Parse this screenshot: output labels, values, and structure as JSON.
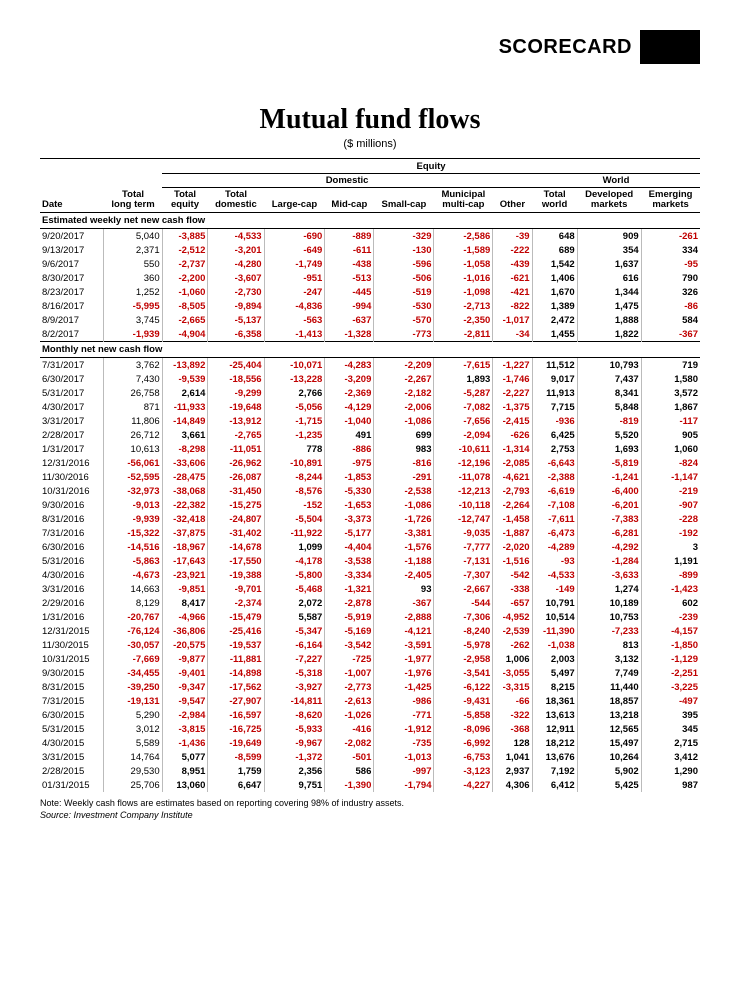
{
  "header": {
    "scorecard": "SCORECARD"
  },
  "title": "Mutual fund flows",
  "subtitle": "($ millions)",
  "group_labels": {
    "equity": "Equity",
    "domestic": "Domestic",
    "world": "World"
  },
  "columns": [
    "Date",
    "Total\nlong term",
    "Total\nequity",
    "Total\ndomestic",
    "Large-cap",
    "Mid-cap",
    "Small-cap",
    "Municipal\nmulti-cap",
    "Other",
    "Total\nworld",
    "Developed\nmarkets",
    "Emerging\nmarkets"
  ],
  "sections": [
    {
      "label": "Estimated weekly net new cash flow",
      "rows": [
        [
          "9/20/2017",
          "5,040",
          "-3,885",
          "-4,533",
          "-690",
          "-889",
          "-329",
          "-2,586",
          "-39",
          "648",
          "909",
          "-261"
        ],
        [
          "9/13/2017",
          "2,371",
          "-2,512",
          "-3,201",
          "-649",
          "-611",
          "-130",
          "-1,589",
          "-222",
          "689",
          "354",
          "334"
        ],
        [
          "9/6/2017",
          "550",
          "-2,737",
          "-4,280",
          "-1,749",
          "-438",
          "-596",
          "-1,058",
          "-439",
          "1,542",
          "1,637",
          "-95"
        ],
        [
          "8/30/2017",
          "360",
          "-2,200",
          "-3,607",
          "-951",
          "-513",
          "-506",
          "-1,016",
          "-621",
          "1,406",
          "616",
          "790"
        ],
        [
          "8/23/2017",
          "1,252",
          "-1,060",
          "-2,730",
          "-247",
          "-445",
          "-519",
          "-1,098",
          "-421",
          "1,670",
          "1,344",
          "326"
        ],
        [
          "8/16/2017",
          "-5,995",
          "-8,505",
          "-9,894",
          "-4,836",
          "-994",
          "-530",
          "-2,713",
          "-822",
          "1,389",
          "1,475",
          "-86"
        ],
        [
          "8/9/2017",
          "3,745",
          "-2,665",
          "-5,137",
          "-563",
          "-637",
          "-570",
          "-2,350",
          "-1,017",
          "2,472",
          "1,888",
          "584"
        ],
        [
          "8/2/2017",
          "-1,939",
          "-4,904",
          "-6,358",
          "-1,413",
          "-1,328",
          "-773",
          "-2,811",
          "-34",
          "1,455",
          "1,822",
          "-367"
        ]
      ]
    },
    {
      "label": "Monthly net new cash flow",
      "rows": [
        [
          "7/31/2017",
          "3,762",
          "-13,892",
          "-25,404",
          "-10,071",
          "-4,283",
          "-2,209",
          "-7,615",
          "-1,227",
          "11,512",
          "10,793",
          "719"
        ],
        [
          "6/30/2017",
          "7,430",
          "-9,539",
          "-18,556",
          "-13,228",
          "-3,209",
          "-2,267",
          "1,893",
          "-1,746",
          "9,017",
          "7,437",
          "1,580"
        ],
        [
          "5/31/2017",
          "26,758",
          "2,614",
          "-9,299",
          "2,766",
          "-2,369",
          "-2,182",
          "-5,287",
          "-2,227",
          "11,913",
          "8,341",
          "3,572"
        ],
        [
          "4/30/2017",
          "871",
          "-11,933",
          "-19,648",
          "-5,056",
          "-4,129",
          "-2,006",
          "-7,082",
          "-1,375",
          "7,715",
          "5,848",
          "1,867"
        ],
        [
          "3/31/2017",
          "11,806",
          "-14,849",
          "-13,912",
          "-1,715",
          "-1,040",
          "-1,086",
          "-7,656",
          "-2,415",
          "-936",
          "-819",
          "-117"
        ],
        [
          "2/28/2017",
          "26,712",
          "3,661",
          "-2,765",
          "-1,235",
          "491",
          "699",
          "-2,094",
          "-626",
          "6,425",
          "5,520",
          "905"
        ],
        [
          "1/31/2017",
          "10,613",
          "-8,298",
          "-11,051",
          "778",
          "-886",
          "983",
          "-10,611",
          "-1,314",
          "2,753",
          "1,693",
          "1,060"
        ],
        [
          "12/31/2016",
          "-56,061",
          "-33,606",
          "-26,962",
          "-10,891",
          "-975",
          "-816",
          "-12,196",
          "-2,085",
          "-6,643",
          "-5,819",
          "-824"
        ],
        [
          "11/30/2016",
          "-52,595",
          "-28,475",
          "-26,087",
          "-8,244",
          "-1,853",
          "-291",
          "-11,078",
          "-4,621",
          "-2,388",
          "-1,241",
          "-1,147"
        ],
        [
          "10/31/2016",
          "-32,973",
          "-38,068",
          "-31,450",
          "-8,576",
          "-5,330",
          "-2,538",
          "-12,213",
          "-2,793",
          "-6,619",
          "-6,400",
          "-219"
        ],
        [
          "9/30/2016",
          "-9,013",
          "-22,382",
          "-15,275",
          "-152",
          "-1,653",
          "-1,086",
          "-10,118",
          "-2,264",
          "-7,108",
          "-6,201",
          "-907"
        ],
        [
          "8/31/2016",
          "-9,939",
          "-32,418",
          "-24,807",
          "-5,504",
          "-3,373",
          "-1,726",
          "-12,747",
          "-1,458",
          "-7,611",
          "-7,383",
          "-228"
        ],
        [
          "7/31/2016",
          "-15,322",
          "-37,875",
          "-31,402",
          "-11,922",
          "-5,177",
          "-3,381",
          "-9,035",
          "-1,887",
          "-6,473",
          "-6,281",
          "-192"
        ],
        [
          "6/30/2016",
          "-14,516",
          "-18,967",
          "-14,678",
          "1,099",
          "-4,404",
          "-1,576",
          "-7,777",
          "-2,020",
          "-4,289",
          "-4,292",
          "3"
        ],
        [
          "5/31/2016",
          "-5,863",
          "-17,643",
          "-17,550",
          "-4,178",
          "-3,538",
          "-1,188",
          "-7,131",
          "-1,516",
          "-93",
          "-1,284",
          "1,191"
        ],
        [
          "4/30/2016",
          "-4,673",
          "-23,921",
          "-19,388",
          "-5,800",
          "-3,334",
          "-2,405",
          "-7,307",
          "-542",
          "-4,533",
          "-3,633",
          "-899"
        ],
        [
          "3/31/2016",
          "14,663",
          "-9,851",
          "-9,701",
          "-5,468",
          "-1,321",
          "93",
          "-2,667",
          "-338",
          "-149",
          "1,274",
          "-1,423"
        ],
        [
          "2/29/2016",
          "8,129",
          "8,417",
          "-2,374",
          "2,072",
          "-2,878",
          "-367",
          "-544",
          "-657",
          "10,791",
          "10,189",
          "602"
        ],
        [
          "1/31/2016",
          "-20,767",
          "-4,966",
          "-15,479",
          "5,587",
          "-5,919",
          "-2,888",
          "-7,306",
          "-4,952",
          "10,514",
          "10,753",
          "-239"
        ],
        [
          "12/31/2015",
          "-76,124",
          "-36,806",
          "-25,416",
          "-5,347",
          "-5,169",
          "-4,121",
          "-8,240",
          "-2,539",
          "-11,390",
          "-7,233",
          "-4,157"
        ],
        [
          "11/30/2015",
          "-30,057",
          "-20,575",
          "-19,537",
          "-6,164",
          "-3,542",
          "-3,591",
          "-5,978",
          "-262",
          "-1,038",
          "813",
          "-1,850"
        ],
        [
          "10/31/2015",
          "-7,669",
          "-9,877",
          "-11,881",
          "-7,227",
          "-725",
          "-1,977",
          "-2,958",
          "1,006",
          "2,003",
          "3,132",
          "-1,129"
        ],
        [
          "9/30/2015",
          "-34,455",
          "-9,401",
          "-14,898",
          "-5,318",
          "-1,007",
          "-1,976",
          "-3,541",
          "-3,055",
          "5,497",
          "7,749",
          "-2,251"
        ],
        [
          "8/31/2015",
          "-39,250",
          "-9,347",
          "-17,562",
          "-3,927",
          "-2,773",
          "-1,425",
          "-6,122",
          "-3,315",
          "8,215",
          "11,440",
          "-3,225"
        ],
        [
          "7/31/2015",
          "-19,131",
          "-9,547",
          "-27,907",
          "-14,811",
          "-2,613",
          "-986",
          "-9,431",
          "-66",
          "18,361",
          "18,857",
          "-497"
        ],
        [
          "6/30/2015",
          "5,290",
          "-2,984",
          "-16,597",
          "-8,620",
          "-1,026",
          "-771",
          "-5,858",
          "-322",
          "13,613",
          "13,218",
          "395"
        ],
        [
          "5/31/2015",
          "3,012",
          "-3,815",
          "-16,725",
          "-5,933",
          "-416",
          "-1,912",
          "-8,096",
          "-368",
          "12,911",
          "12,565",
          "345"
        ],
        [
          "4/30/2015",
          "5,589",
          "-1,436",
          "-19,649",
          "-9,967",
          "-2,082",
          "-735",
          "-6,992",
          "128",
          "18,212",
          "15,497",
          "2,715"
        ],
        [
          "3/31/2015",
          "14,764",
          "5,077",
          "-8,599",
          "-1,372",
          "-501",
          "-1,013",
          "-6,753",
          "1,041",
          "13,676",
          "10,264",
          "3,412"
        ],
        [
          "2/28/2015",
          "29,530",
          "8,951",
          "1,759",
          "2,356",
          "586",
          "-997",
          "-3,123",
          "2,937",
          "7,192",
          "5,902",
          "1,290"
        ],
        [
          "01/31/2015",
          "25,706",
          "13,060",
          "6,647",
          "9,751",
          "-1,390",
          "-1,794",
          "-4,227",
          "4,306",
          "6,412",
          "5,425",
          "987"
        ]
      ]
    }
  ],
  "note": "Note:  Weekly cash flows are estimates based on reporting covering 98% of industry assets.",
  "source": "Source: Investment Company Institute",
  "colors": {
    "neg": "#c00000",
    "pos": "#000000"
  },
  "bold_cols": [
    2,
    3,
    4,
    5,
    6,
    7,
    8,
    9,
    10,
    11
  ]
}
